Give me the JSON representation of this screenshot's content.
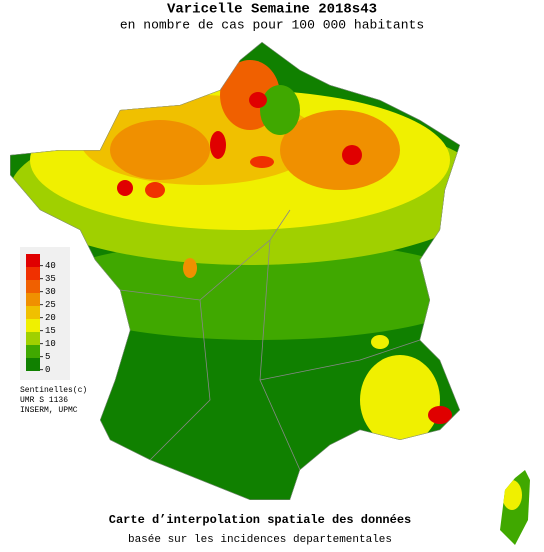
{
  "header": {
    "title": "Varicelle Semaine 2018s43",
    "subtitle": "en nombre de cas pour 100 000 habitants"
  },
  "legend": {
    "labels": [
      "40",
      "35",
      "30",
      "25",
      "20",
      "15",
      "10",
      "5",
      "0"
    ],
    "colors": [
      "#e00000",
      "#f03000",
      "#f06000",
      "#f09000",
      "#f0c000",
      "#f0f000",
      "#a0d000",
      "#40a800",
      "#108000"
    ]
  },
  "credits": [
    "Sentinelles(c)",
    "UMR S 1136",
    "INSERM, UPMC"
  ],
  "footer": {
    "title": "Carte d’interpolation spatiale des données",
    "subtitle": "basée sur les incidences departementales"
  }
}
